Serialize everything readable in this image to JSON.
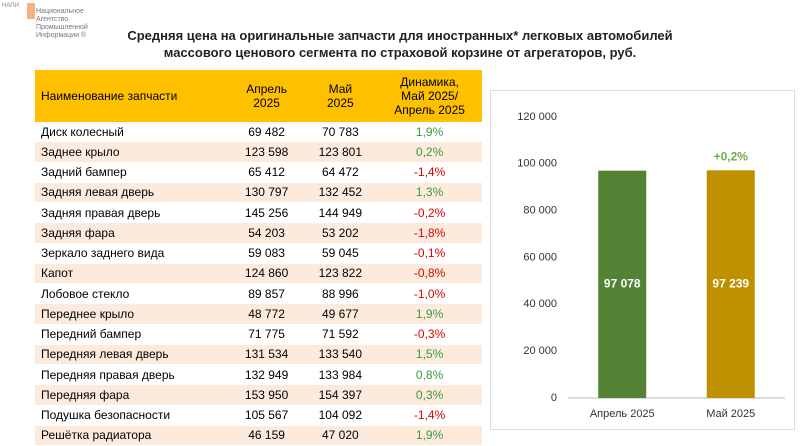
{
  "logo": {
    "abbr": "НАПИ",
    "name": "Национальное\nАгентство\nПромышленной\nИнформации ®"
  },
  "title": "Средняя цена на оригинальные запчасти для иностранных* легковых автомобилей\nмассового ценового сегмента по страховой корзине от агрегаторов, руб.",
  "table": {
    "header": [
      "Наименование запчасти",
      "Апрель\n2025",
      "Май\n2025",
      "Динамика,\nМай 2025/\nАпрель 2025"
    ],
    "rows": [
      [
        "Диск колесный",
        "69 482",
        "70 783",
        "1,9%"
      ],
      [
        "Заднее крыло",
        "123 598",
        "123 801",
        "0,2%"
      ],
      [
        "Задний бампер",
        "65 412",
        "64 472",
        "-1,4%"
      ],
      [
        "Задняя левая дверь",
        "130 797",
        "132 452",
        "1,3%"
      ],
      [
        "Задняя правая дверь",
        "145 256",
        "144 949",
        "-0,2%"
      ],
      [
        "Задняя фара",
        "54 203",
        "53 202",
        "-1,8%"
      ],
      [
        "Зеркало заднего вида",
        "59 083",
        "59 045",
        "-0,1%"
      ],
      [
        "Капот",
        "124 860",
        "123 822",
        "-0,8%"
      ],
      [
        "Лобовое стекло",
        "89 857",
        "88 996",
        "-1,0%"
      ],
      [
        "Переднее крыло",
        "48 772",
        "49 677",
        "1,9%"
      ],
      [
        "Передний бампер",
        "71 775",
        "71 592",
        "-0,3%"
      ],
      [
        "Передняя левая дверь",
        "131 534",
        "133 540",
        "1,5%"
      ],
      [
        "Передняя правая дверь",
        "132 949",
        "133 984",
        "0,8%"
      ],
      [
        "Передняя фара",
        "153 950",
        "154 397",
        "0,3%"
      ],
      [
        "Подушка безопасности",
        "105 567",
        "104 092",
        "-1,4%"
      ],
      [
        "Решётка радиатора",
        "46 159",
        "47 020",
        "1,9%"
      ]
    ]
  },
  "chart_data": {
    "type": "bar",
    "categories": [
      "Апрель 2025",
      "Май 2025"
    ],
    "values": [
      97078,
      97239
    ],
    "value_labels": [
      "97 078",
      "97 239"
    ],
    "colors": [
      "#548235",
      "#bf9000"
    ],
    "ylim": [
      0,
      120000
    ],
    "yticks": [
      0,
      {
        "value": 20000,
        "label": "20 000"
      },
      {
        "value": 40000,
        "label": "40 000"
      },
      {
        "value": 60000,
        "label": "60 000"
      },
      {
        "value": 80000,
        "label": "80 000"
      },
      {
        "value": 100000,
        "label": "100 000"
      },
      {
        "value": 120000,
        "label": "120 000"
      }
    ],
    "grid": false,
    "annotation": "+0,2%",
    "annotation_color": "#70ad47"
  }
}
